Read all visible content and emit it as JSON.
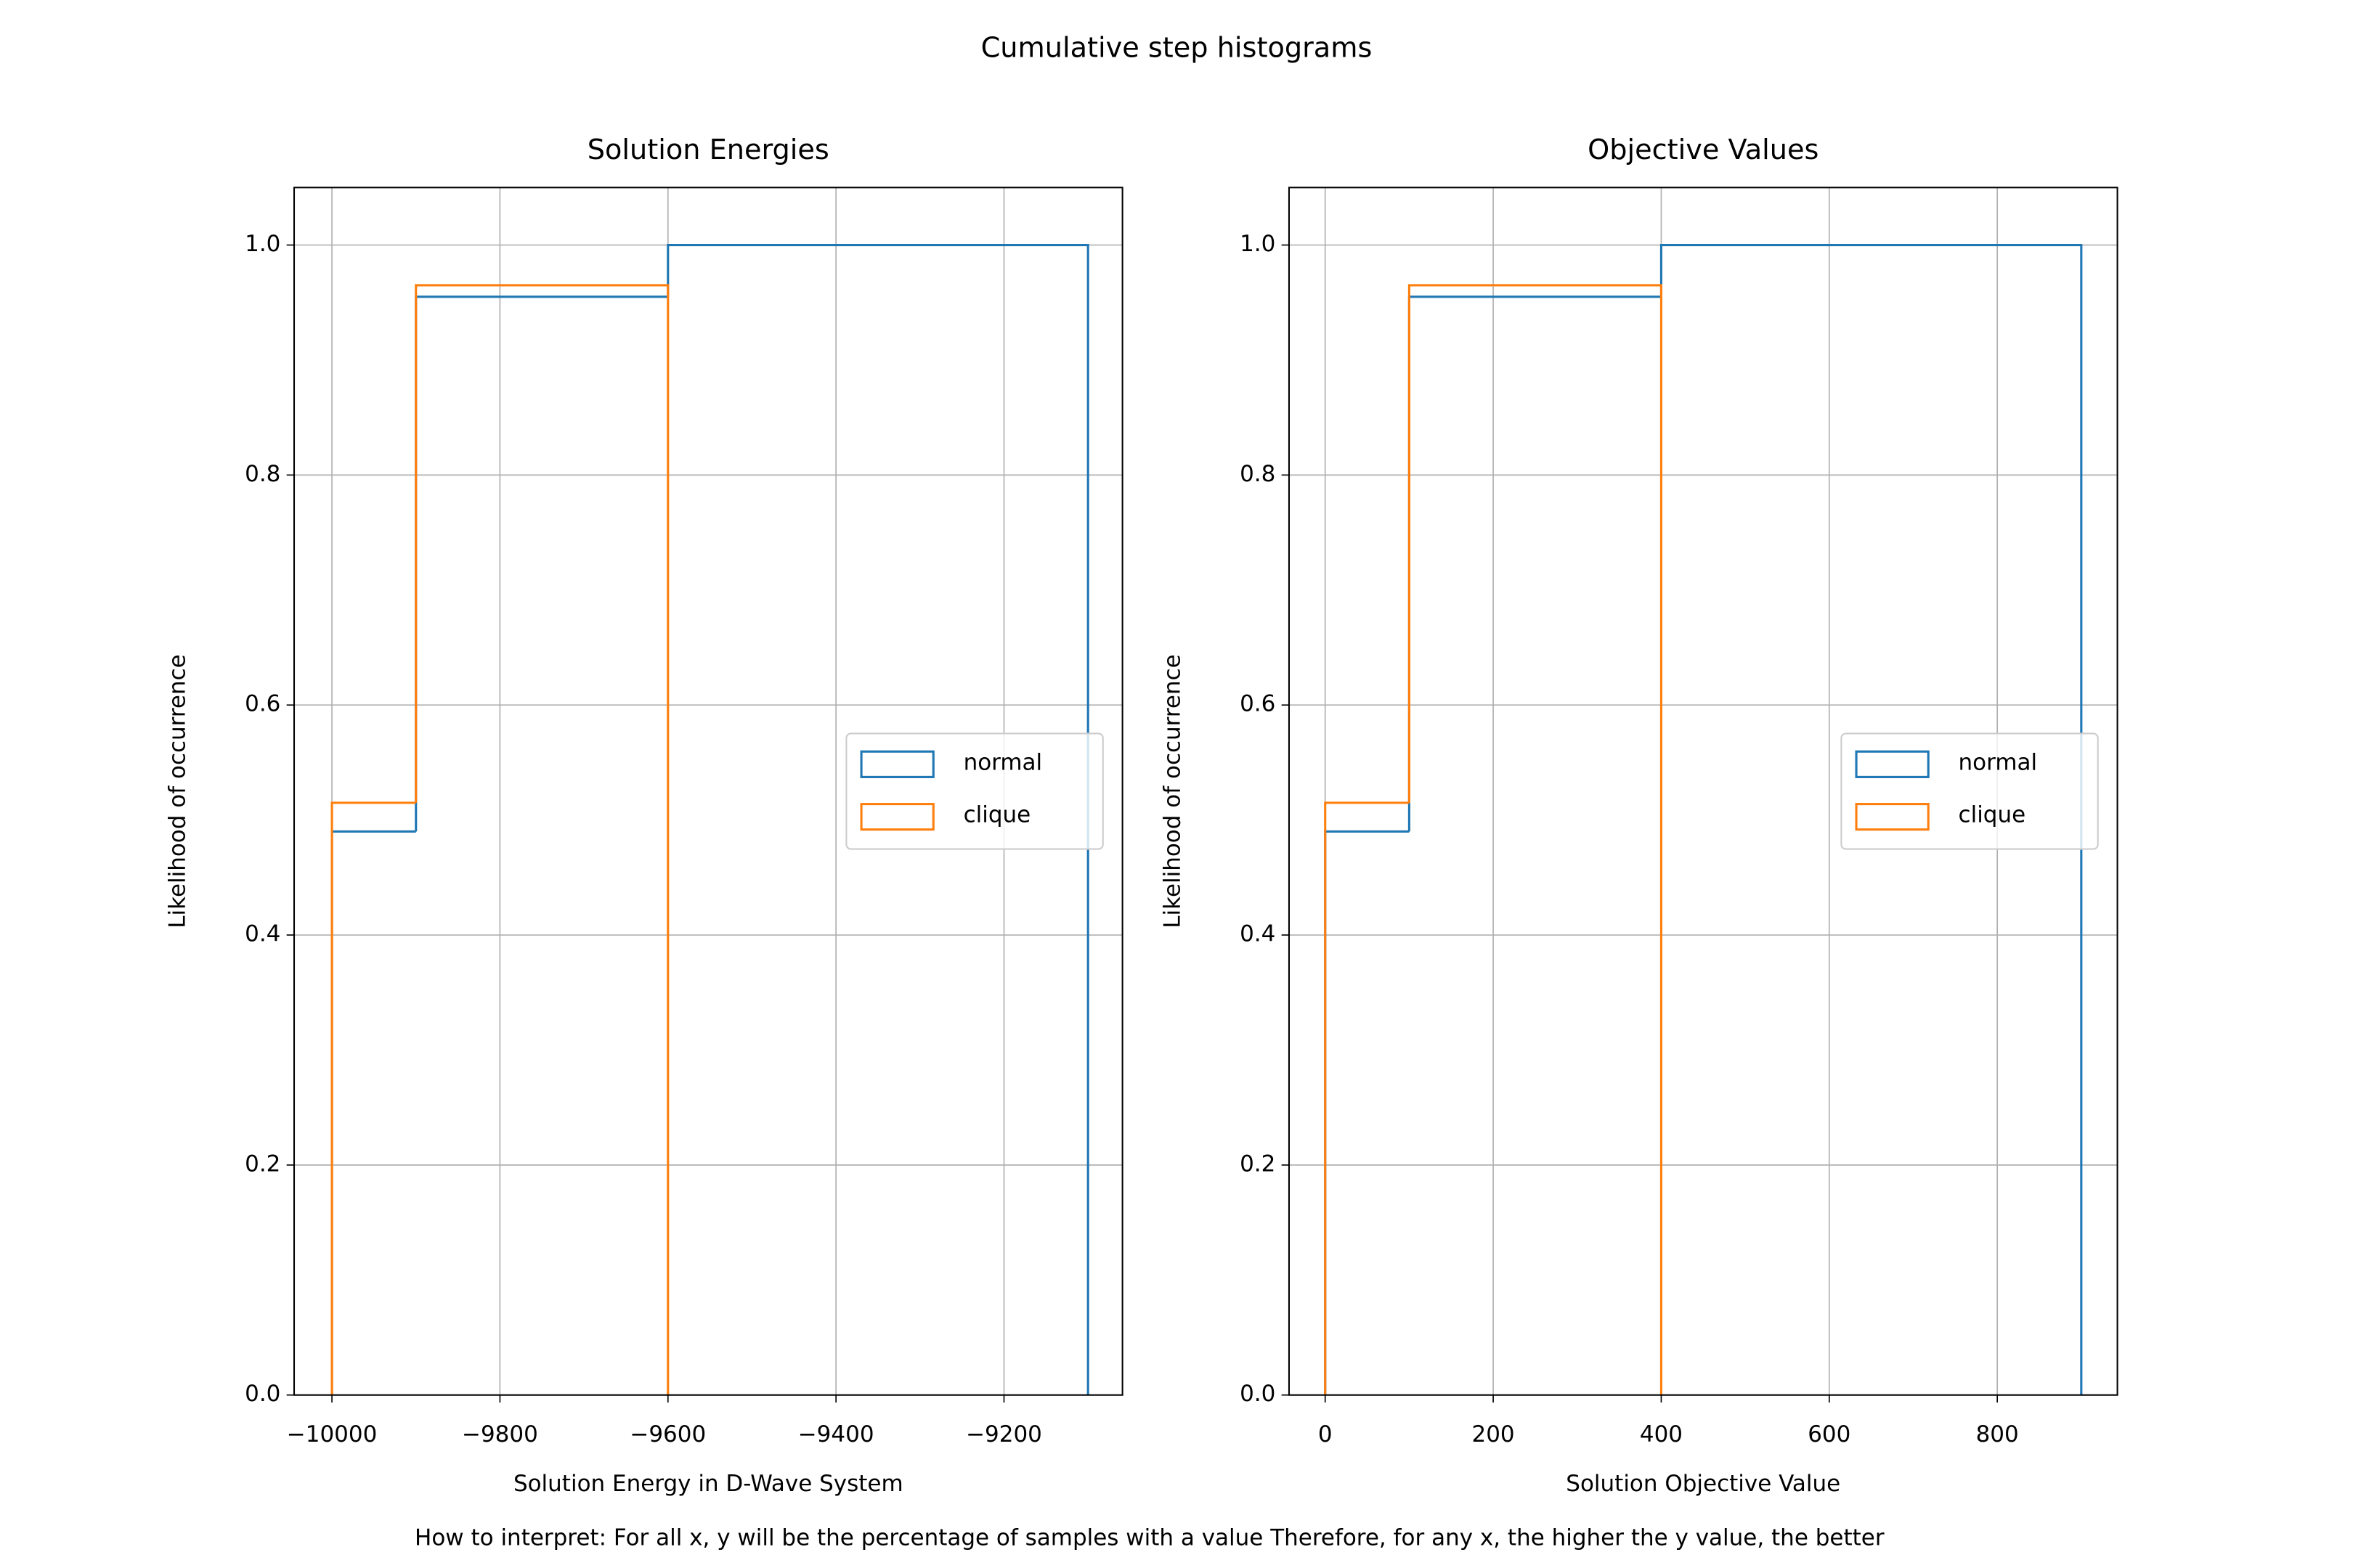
{
  "title": "Cumulative step histograms",
  "note": "How to interpret: For all x, y will be the percentage of samples with a value  Therefore, for any x, the higher the y value, the better",
  "chart_data": [
    {
      "type": "histogram",
      "title": "Solution Energies",
      "xlabel": "Solution Energy in D-Wave System",
      "ylabel": "Likelihood of occurrence",
      "series": [
        {
          "name": "normal",
          "color": "#1f77b4",
          "bins": [
            -10000,
            -9900,
            -9600,
            -9100
          ],
          "values": [
            0.49,
            0.955,
            1.0
          ]
        },
        {
          "name": "clique",
          "color": "#ff7f0e",
          "bins": [
            -10000,
            -9900,
            -9600
          ],
          "values": [
            0.515,
            0.965
          ]
        }
      ],
      "xlim": [
        -10045,
        -9059
      ],
      "ylim": [
        0,
        1.05
      ],
      "xticks": [
        {
          "value": -10000,
          "label": "−10000"
        },
        {
          "value": -9800,
          "label": "−9800"
        },
        {
          "value": -9600,
          "label": "−9600"
        },
        {
          "value": -9400,
          "label": "−9400"
        },
        {
          "value": -9200,
          "label": "−9200"
        }
      ],
      "yticks": [
        {
          "value": 0,
          "label": "0.0"
        },
        {
          "value": 0.2,
          "label": "0.2"
        },
        {
          "value": 0.4,
          "label": "0.4"
        },
        {
          "value": 0.6,
          "label": "0.6"
        },
        {
          "value": 0.8,
          "label": "0.8"
        },
        {
          "value": 1,
          "label": "1.0"
        }
      ],
      "grid": true,
      "legend": "center right"
    },
    {
      "type": "histogram",
      "title": "Objective Values",
      "xlabel": "Solution Objective Value",
      "ylabel": "Likelihood of occurrence",
      "series": [
        {
          "name": "normal",
          "color": "#1f77b4",
          "bins": [
            0,
            100,
            400,
            900
          ],
          "values": [
            0.49,
            0.955,
            1.0
          ]
        },
        {
          "name": "clique",
          "color": "#ff7f0e",
          "bins": [
            0,
            100,
            400
          ],
          "values": [
            0.515,
            0.965
          ]
        }
      ],
      "xlim": [
        -43,
        943
      ],
      "ylim": [
        0,
        1.05
      ],
      "xticks": [
        0,
        200,
        400,
        600,
        800
      ],
      "yticks": [
        {
          "value": 0,
          "label": "0.0"
        },
        {
          "value": 0.2,
          "label": "0.2"
        },
        {
          "value": 0.4,
          "label": "0.4"
        },
        {
          "value": 0.6,
          "label": "0.6"
        },
        {
          "value": 0.8,
          "label": "0.8"
        },
        {
          "value": 1,
          "label": "1.0"
        }
      ],
      "grid": true,
      "legend": "center right"
    }
  ]
}
